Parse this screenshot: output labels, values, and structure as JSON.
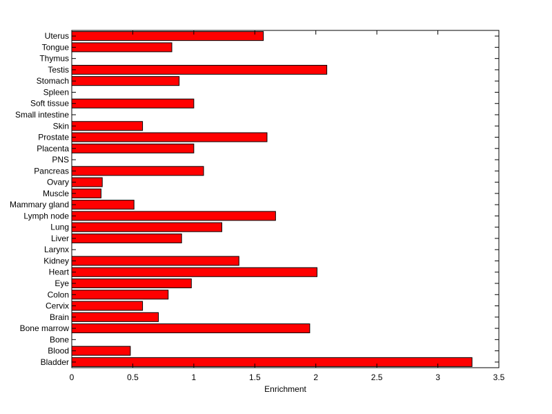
{
  "chart_data": {
    "type": "bar",
    "orientation": "horizontal",
    "title": "",
    "xlabel": "Enrichment",
    "ylabel": "",
    "xlim": [
      0,
      3.5
    ],
    "xticks": [
      "0",
      "0.5",
      "1",
      "1.5",
      "2",
      "2.5",
      "3",
      "3.5"
    ],
    "grid": false,
    "bar_color": "#ff0000",
    "bar_edge_color": "#000000",
    "categories": [
      "Bladder",
      "Blood",
      "Bone",
      "Bone marrow",
      "Brain",
      "Cervix",
      "Colon",
      "Eye",
      "Heart",
      "Kidney",
      "Larynx",
      "Liver",
      "Lung",
      "Lymph node",
      "Mammary gland",
      "Muscle",
      "Ovary",
      "Pancreas",
      "PNS",
      "Placenta",
      "Prostate",
      "Skin",
      "Small intestine",
      "Soft tissue",
      "Spleen",
      "Stomach",
      "Testis",
      "Thymus",
      "Tongue",
      "Uterus"
    ],
    "values": [
      3.28,
      0.48,
      0,
      1.95,
      0.71,
      0.58,
      0.79,
      0.98,
      2.01,
      1.37,
      0,
      0.9,
      1.23,
      1.67,
      0.51,
      0.24,
      0.25,
      1.08,
      0,
      1.0,
      1.6,
      0.58,
      0,
      1.0,
      0,
      0.88,
      2.09,
      0,
      0.82,
      1.57
    ]
  }
}
